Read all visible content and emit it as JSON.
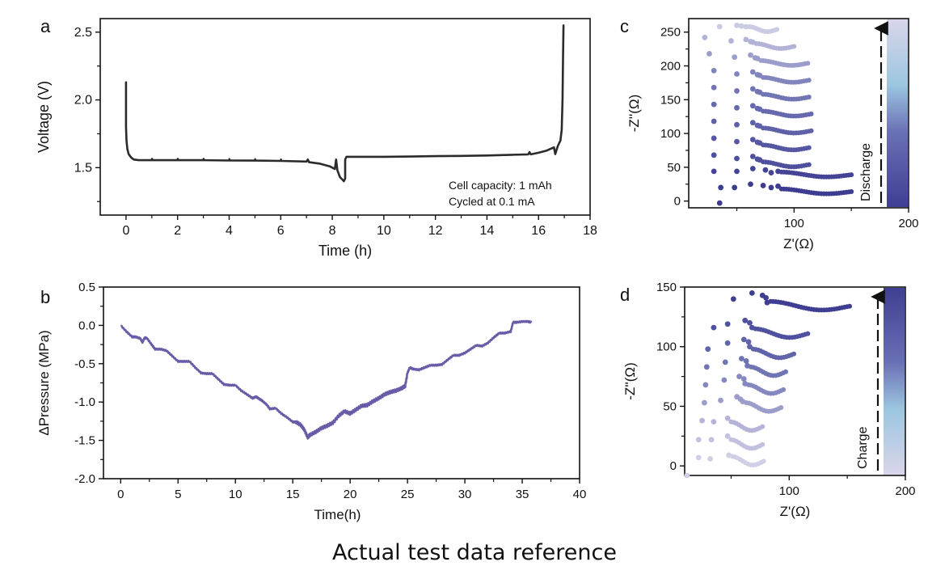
{
  "caption": "Actual test data reference",
  "chart_data": [
    {
      "panel": "a",
      "type": "line",
      "title": "",
      "xlabel": "Time (h)",
      "ylabel": "Voltage (V)",
      "xlim": [
        -1,
        18
      ],
      "ylim": [
        1.15,
        2.6
      ],
      "xticks": [
        0,
        2,
        4,
        6,
        8,
        10,
        12,
        14,
        16,
        18
      ],
      "xtick_labels": [
        "0",
        "2",
        "4",
        "6",
        "8",
        "10",
        "12",
        "14",
        "16",
        "18"
      ],
      "yticks": [
        1.5,
        2.0,
        2.5
      ],
      "ytick_labels": [
        "1.5",
        "2.0",
        "2.5"
      ],
      "annotations": [
        "Cell capacity: 1 mAh",
        "Cycled at 0.1 mA"
      ],
      "series": [
        {
          "name": "voltage",
          "color": "#2b2b2b",
          "x": [
            0,
            0,
            0.02,
            0.05,
            0.1,
            0.2,
            0.3,
            0.5,
            1,
            1.01,
            1.02,
            2,
            2.01,
            2.02,
            3,
            3.01,
            3.02,
            4,
            4.01,
            4.02,
            5,
            5.01,
            5.02,
            6,
            6.01,
            6.02,
            7,
            7.05,
            7.1,
            7.5,
            7.9,
            8.1,
            8.15,
            8.2,
            8.3,
            8.4,
            8.45,
            8.5,
            8.5,
            8.55,
            9,
            10,
            11,
            12,
            13,
            14,
            15,
            15.6,
            15.65,
            15.7,
            16,
            16.3,
            16.6,
            16.65,
            16.75,
            16.85,
            16.9,
            16.93,
            16.95,
            16.97
          ],
          "y": [
            2.13,
            1.8,
            1.7,
            1.64,
            1.6,
            1.575,
            1.56,
            1.555,
            1.555,
            1.565,
            1.555,
            1.555,
            1.565,
            1.555,
            1.555,
            1.565,
            1.555,
            1.553,
            1.563,
            1.553,
            1.552,
            1.562,
            1.552,
            1.55,
            1.56,
            1.55,
            1.545,
            1.56,
            1.54,
            1.53,
            1.51,
            1.49,
            1.56,
            1.48,
            1.43,
            1.41,
            1.4,
            1.42,
            1.56,
            1.58,
            1.58,
            1.58,
            1.582,
            1.585,
            1.587,
            1.59,
            1.595,
            1.598,
            1.615,
            1.598,
            1.61,
            1.625,
            1.65,
            1.6,
            1.66,
            1.7,
            1.78,
            2.0,
            2.3,
            2.55
          ]
        }
      ]
    },
    {
      "panel": "b",
      "type": "line",
      "title": "",
      "xlabel": "Time(h)",
      "ylabel": "ΔPressure (MPa)",
      "xlim": [
        -1.5,
        40
      ],
      "ylim": [
        -2.0,
        0.5
      ],
      "xticks": [
        0,
        5,
        10,
        15,
        20,
        25,
        30,
        35,
        40
      ],
      "xtick_labels": [
        "0",
        "5",
        "10",
        "15",
        "20",
        "25",
        "30",
        "35",
        "40"
      ],
      "yticks": [
        0.5,
        0.0,
        -0.5,
        -1.0,
        -1.5,
        -2.0
      ],
      "ytick_labels": [
        "0.5",
        "0.0",
        "-0.5",
        "-1.0",
        "-1.5",
        "-2.0"
      ],
      "series": [
        {
          "name": "pressure",
          "color": "#6a5ba8",
          "x": [
            0,
            0.5,
            1,
            1.3,
            1.7,
            1.9,
            2.1,
            2.3,
            2.7,
            3,
            3.5,
            4,
            4.5,
            5,
            5.5,
            6,
            6.5,
            7,
            7.5,
            8,
            8.5,
            9,
            9.5,
            10,
            10.5,
            11,
            11.5,
            11.8,
            12,
            12.3,
            12.7,
            13,
            13.5,
            14,
            14.5,
            15,
            15.3,
            15.7,
            16,
            16.3,
            16.5,
            17,
            17.5,
            18,
            18.5,
            19,
            19.5,
            20,
            20.5,
            21,
            21.5,
            22,
            22.5,
            23,
            23.5,
            24,
            24.5,
            24.8,
            25,
            25.2,
            25.5,
            26,
            26.5,
            27,
            27.5,
            28,
            28.5,
            29,
            29.5,
            30,
            30.5,
            31,
            31.5,
            32,
            32.5,
            33,
            33.5,
            34,
            34.2,
            34.5,
            35,
            35.5,
            35.8
          ],
          "y": [
            0.0,
            -0.08,
            -0.15,
            -0.15,
            -0.17,
            -0.22,
            -0.16,
            -0.17,
            -0.25,
            -0.31,
            -0.31,
            -0.33,
            -0.4,
            -0.47,
            -0.47,
            -0.47,
            -0.55,
            -0.62,
            -0.63,
            -0.63,
            -0.7,
            -0.77,
            -0.78,
            -0.78,
            -0.85,
            -0.9,
            -0.95,
            -0.93,
            -0.95,
            -0.98,
            -1.03,
            -1.09,
            -1.08,
            -1.15,
            -1.2,
            -1.26,
            -1.26,
            -1.3,
            -1.36,
            -1.46,
            -1.43,
            -1.39,
            -1.34,
            -1.31,
            -1.27,
            -1.18,
            -1.12,
            -1.15,
            -1.1,
            -1.05,
            -1.04,
            -0.99,
            -0.95,
            -0.9,
            -0.87,
            -0.85,
            -0.82,
            -0.79,
            -0.62,
            -0.55,
            -0.57,
            -0.58,
            -0.55,
            -0.52,
            -0.52,
            -0.51,
            -0.45,
            -0.39,
            -0.39,
            -0.36,
            -0.31,
            -0.26,
            -0.27,
            -0.23,
            -0.16,
            -0.1,
            -0.1,
            -0.08,
            0.04,
            0.04,
            0.05,
            0.05,
            0.04
          ]
        }
      ]
    },
    {
      "panel": "c",
      "type": "scatter",
      "title": "",
      "xlabel": "Z'(Ω)",
      "ylabel": "-Z''(Ω)",
      "xlim": [
        8,
        200
      ],
      "ylim": [
        -10,
        270
      ],
      "xticks": [
        100,
        200
      ],
      "xtick_labels": [
        "100",
        "200"
      ],
      "yticks": [
        0,
        50,
        100,
        150,
        200,
        250
      ],
      "ytick_labels": [
        "0",
        "50",
        "100",
        "150",
        "200",
        "250"
      ],
      "colorbar_label": "Discharge",
      "colorbar_colors": [
        "#3f3f93",
        "#6a70b5",
        "#9cc6e0",
        "#d9d6ea"
      ],
      "series": [
        {
          "name": "c1",
          "color": "#3d3c90",
          "offset": 15,
          "x_end": 150,
          "x": [
            35,
            36,
            48,
            62,
            73,
            80,
            86
          ],
          "y": [
            -3,
            20,
            20,
            25,
            23,
            20,
            22
          ]
        },
        {
          "name": "c2",
          "color": "#444396",
          "offset": 40,
          "x_end": 150,
          "x": [
            30,
            50,
            64,
            75,
            80,
            86
          ],
          "y": [
            44,
            44,
            48,
            46,
            42,
            44
          ]
        },
        {
          "name": "c3",
          "color": "#4e4f9d",
          "offset": 55,
          "x_end": 113,
          "x": [
            30,
            50,
            64,
            68,
            70
          ],
          "y": [
            68,
            63,
            66,
            62,
            61
          ]
        },
        {
          "name": "c4",
          "color": "#5557a2",
          "offset": 80,
          "x_end": 113,
          "x": [
            30,
            50,
            64,
            68,
            70
          ],
          "y": [
            93,
            88,
            91,
            87,
            86
          ]
        },
        {
          "name": "c5",
          "color": "#5e61a8",
          "offset": 105,
          "x_end": 115,
          "x": [
            30,
            50,
            64,
            68,
            70
          ],
          "y": [
            118,
            113,
            116,
            112,
            111
          ]
        },
        {
          "name": "c6",
          "color": "#6569ad",
          "offset": 130,
          "x_end": 115,
          "x": [
            30,
            50,
            64,
            68,
            70
          ],
          "y": [
            143,
            138,
            141,
            137,
            136
          ]
        },
        {
          "name": "c7",
          "color": "#7175b4",
          "offset": 155,
          "x_end": 113,
          "x": [
            30,
            50,
            64,
            68,
            70
          ],
          "y": [
            168,
            163,
            166,
            162,
            161
          ]
        },
        {
          "name": "c8",
          "color": "#8285bd",
          "offset": 180,
          "x_end": 113,
          "x": [
            30,
            50,
            64,
            68,
            70
          ],
          "y": [
            193,
            188,
            191,
            187,
            186
          ]
        },
        {
          "name": "c9",
          "color": "#9b9dca",
          "offset": 205,
          "x_end": 112,
          "x": [
            26,
            48,
            62,
            66,
            68
          ],
          "y": [
            218,
            213,
            216,
            212,
            211
          ]
        },
        {
          "name": "c10",
          "color": "#b2b3d6",
          "offset": 230,
          "x_end": 100,
          "x": [
            22,
            45,
            58,
            62,
            64
          ],
          "y": [
            242,
            237,
            239,
            236,
            235
          ]
        },
        {
          "name": "c11",
          "color": "#cbcbe3",
          "offset": 255,
          "x_end": 85,
          "x": [
            35,
            50,
            54,
            58
          ],
          "y": [
            258,
            260,
            259,
            258
          ]
        }
      ]
    },
    {
      "panel": "d",
      "type": "scatter",
      "title": "",
      "xlabel": "Z'(Ω)",
      "ylabel": "-Z''(Ω)",
      "xlim": [
        10,
        200
      ],
      "ylim": [
        -8,
        150
      ],
      "xticks": [
        100,
        200
      ],
      "xtick_labels": [
        "100",
        "200"
      ],
      "yticks": [
        0,
        50,
        100,
        150
      ],
      "ytick_labels": [
        "0",
        "50",
        "100",
        "150"
      ],
      "colorbar_label": "Charge",
      "colorbar_colors": [
        "#3f3f93",
        "#6a70b5",
        "#9cc6e0",
        "#d9d6ea"
      ],
      "series": [
        {
          "name": "d1",
          "color": "#d0cfe6",
          "offset": 5,
          "x_end": 78,
          "x": [
            12,
            22,
            32,
            48
          ],
          "y": [
            -8,
            7,
            6,
            9
          ]
        },
        {
          "name": "d2",
          "color": "#c2c1df",
          "offset": 19,
          "x_end": 77,
          "x": [
            22,
            33,
            47
          ],
          "y": [
            22,
            22,
            25
          ]
        },
        {
          "name": "d3",
          "color": "#b5b4d8",
          "offset": 34,
          "x_end": 77,
          "x": [
            25,
            35,
            47
          ],
          "y": [
            38,
            37,
            40
          ]
        },
        {
          "name": "d4",
          "color": "#9b9cca",
          "offset": 50,
          "x_end": 93,
          "x": [
            27,
            41,
            55,
            58,
            60
          ],
          "y": [
            53,
            55,
            58,
            56,
            54
          ]
        },
        {
          "name": "d5",
          "color": "#8587bf",
          "offset": 65,
          "x_end": 95,
          "x": [
            28,
            44,
            57,
            61,
            62
          ],
          "y": [
            68,
            72,
            75,
            73,
            69
          ]
        },
        {
          "name": "d6",
          "color": "#7174b3",
          "offset": 80,
          "x_end": 97,
          "x": [
            29,
            45,
            59,
            63,
            64
          ],
          "y": [
            83,
            87,
            90,
            88,
            84
          ]
        },
        {
          "name": "d7",
          "color": "#6064aa",
          "offset": 95,
          "x_end": 104,
          "x": [
            30,
            47,
            61,
            65,
            66
          ],
          "y": [
            98,
            103,
            106,
            104,
            100
          ]
        },
        {
          "name": "d8",
          "color": "#4f519f",
          "offset": 112,
          "x_end": 116,
          "x": [
            35,
            47,
            62,
            66,
            68
          ],
          "y": [
            116,
            119,
            122,
            120,
            116
          ]
        },
        {
          "name": "d9",
          "color": "#3f3e92",
          "offset": 135,
          "x_end": 152,
          "x": [
            52,
            68,
            77,
            80,
            81
          ],
          "y": [
            140,
            145,
            143,
            141,
            137
          ]
        }
      ]
    }
  ]
}
